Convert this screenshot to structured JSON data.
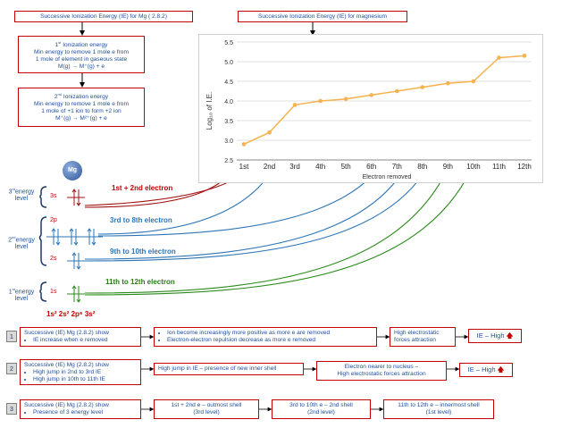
{
  "titles": {
    "left": "Successive Ionization Energy (IE) for Mg ( 2.8.2)",
    "right": "Successive Ionization Energy (IE) for magnesium"
  },
  "ie1": {
    "heading_num": "1",
    "heading_sup": "st",
    "heading_rest": " Ionization energy",
    "line1": "Min energy to remove 1 mole e from",
    "line2": "1 mole of element in gaseous state",
    "eq": "M(g) → M⁺(g) + e"
  },
  "ie2": {
    "heading_num": "2",
    "heading_sup": "nd",
    "heading_rest": " Ionization energy",
    "line1": "Min energy to remove 1 mole e from",
    "line2": "1 mole of +1 ion to form +2 ion",
    "eq": "M⁺(g) → M²⁺(g) + e"
  },
  "atom": {
    "symbol": "Mg",
    "level3": "3rd energy level",
    "level3_a": "3",
    "level3_sup": "rd",
    "level3_b": "energy",
    "level3_c": "level",
    "level2_a": "2",
    "level2_sup": "nd",
    "level2_b": "energy",
    "level2_c": "level",
    "level1_a": "1",
    "level1_sup": "st",
    "level1_b": "energy",
    "level1_c": "level",
    "sub_3s": "3s",
    "sub_2p": "2p",
    "sub_2s": "2s",
    "sub_1s": "1s",
    "config": "1s² 2s² 2p⁶ 3s²"
  },
  "electron_labels": {
    "e12": "1st + 2nd electron",
    "e38": "3rd to 8th electron",
    "e910": "9th to 10th electron",
    "e1112": "11th to 12th electron"
  },
  "chart_data": {
    "type": "line",
    "categories": [
      "1st",
      "2nd",
      "3rd",
      "4th",
      "5th",
      "6th",
      "7th",
      "8th",
      "9th",
      "10th",
      "11th",
      "12th"
    ],
    "values": [
      2.9,
      3.2,
      3.9,
      4.0,
      4.05,
      4.15,
      4.25,
      4.35,
      4.45,
      4.5,
      5.1,
      5.15
    ],
    "ylabel": "Log₁₀ of I.E.",
    "xlabel": "Electron removed",
    "ylim": [
      2.5,
      5.5
    ],
    "yticks": [
      "2.5",
      "3.0",
      "3.5",
      "4.0",
      "4.5",
      "5.0",
      "5.5"
    ],
    "grid": true,
    "line_color": "#f5b24e"
  },
  "rows": [
    {
      "num": "1",
      "box1_title": "Successive (IE) Mg (2.8.2) show",
      "box1_items": [
        "IE increase when e removed"
      ],
      "box2_items": [
        "Ion become increasingly more positive as more e are removed",
        "Electron-electron repulsion decrease as more e removed"
      ],
      "box3_line1": "High electrostatic",
      "box3_line2": "forces attraction",
      "box4": "IE – High"
    },
    {
      "num": "2",
      "box1_title": "Successive (IE) Mg (2.8.2) show",
      "box1_items": [
        "High jump in 2nd to 3rd IE",
        "High jump in 10th to 11th IE"
      ],
      "box2": "High jump in IE – presence of new inner shell",
      "box3_line1": "Electron nearer to nucleus –",
      "box3_line2": "High electrostatic forces attraction",
      "box4": "IE – High"
    },
    {
      "num": "3",
      "box1_title": "Successive (IE) Mg (2.8.2) show",
      "box1_items": [
        "Presence of 3 energy level"
      ],
      "box2_line1": "1st + 2nd e – outmost shell",
      "box2_line2": "(3rd level)",
      "box3_line1": "3rd to 10th e – 2nd shell",
      "box3_line2": "(2nd level)",
      "box4_line1": "11th to 12th e – innermost shell",
      "box4_line2": "(1st level)"
    }
  ]
}
